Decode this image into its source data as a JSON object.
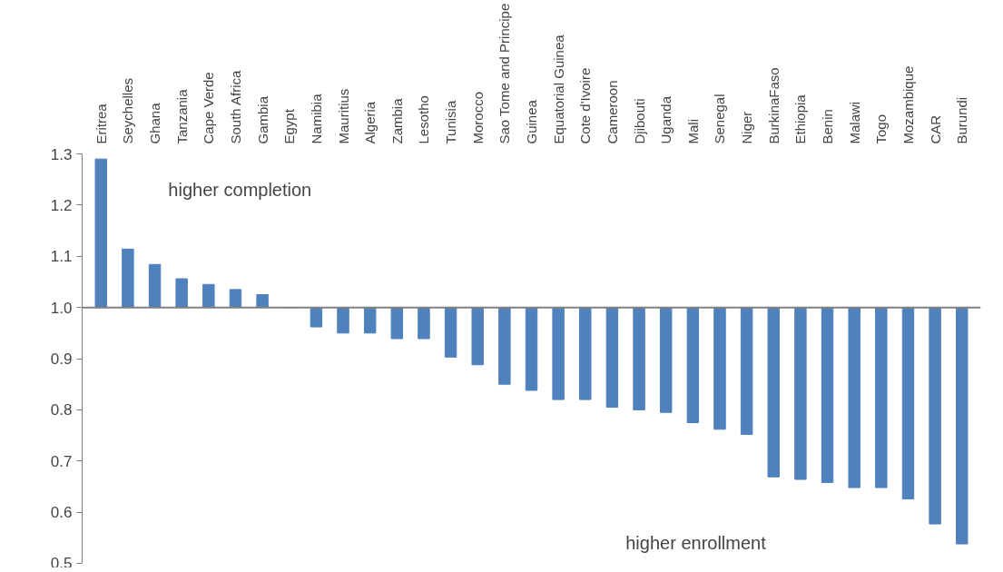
{
  "chart_data": {
    "type": "bar",
    "categories": [
      "Eritrea",
      "Seychelles",
      "Ghana",
      "Tanzania",
      "Cape Verde",
      "South Africa",
      "Gambia",
      "Egypt",
      "Namibia",
      "Mauritius",
      "Algeria",
      "Zambia",
      "Lesotho",
      "Tunisia",
      "Morocco",
      "Sao Tome and Principe",
      "Guinea",
      "Equatorial Guinea",
      "Cote d'Ivoire",
      "Cameroon",
      "Djibouti",
      "Uganda",
      "Mali",
      "Senegal",
      "Niger",
      "BurkinaFaso",
      "Ethiopia",
      "Benin",
      "Malawi",
      "Togo",
      "Mozambique",
      "CAR",
      "Burundi"
    ],
    "base": [
      1,
      1,
      1,
      1,
      1,
      1,
      1,
      1,
      1,
      1,
      1,
      1,
      1,
      1,
      1,
      1,
      1,
      1,
      1,
      1,
      1,
      1,
      1,
      1,
      1,
      1,
      1,
      1,
      1,
      1,
      1,
      1,
      1
    ],
    "values": [
      0.29,
      0.114,
      0.084,
      0.056,
      0.045,
      0.035,
      0.025,
      0,
      -0.038,
      -0.05,
      -0.05,
      -0.061,
      -0.061,
      -0.097,
      -0.112,
      -0.15,
      -0.162,
      -0.18,
      -0.18,
      -0.195,
      -0.2,
      -0.205,
      -0.225,
      -0.238,
      -0.248,
      -0.331,
      -0.336,
      -0.342,
      -0.352,
      -0.352,
      -0.374,
      -0.423,
      -0.462
    ],
    "color": "#4f81bd",
    "ylim": [
      0.5,
      1.3
    ],
    "yticks": [
      {
        "value": 0.5,
        "label": "0.5"
      },
      0.6,
      0.7,
      0.8,
      0.9,
      {
        "value": 1,
        "label": "1.0"
      },
      1.1,
      1.2,
      1.3
    ],
    "grid": false,
    "ref_lines": [
      {
        "axis": "y",
        "value": 1,
        "color": "#808080"
      }
    ],
    "annotations": [
      "higher completion",
      "higher enrollment"
    ]
  }
}
